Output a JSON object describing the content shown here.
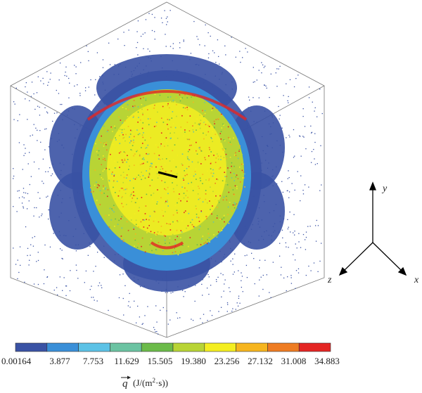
{
  "colorbar": {
    "colors": [
      "#3a52a4",
      "#3a8fd8",
      "#5cc2e6",
      "#6bc3a2",
      "#6cbb4a",
      "#b8d435",
      "#f4ee20",
      "#f6b51e",
      "#ee7c22",
      "#e42523"
    ],
    "tick_labels": [
      "0.00164",
      "3.877",
      "7.753",
      "11.629",
      "15.505",
      "19.380",
      "23.256",
      "27.132",
      "31.008",
      "34.883"
    ]
  },
  "axis_labels": {
    "y": "y",
    "z": "z",
    "x": "x"
  },
  "quantity": {
    "symbol": "q",
    "unit_start": "(J/(m",
    "unit_exponent": "2",
    "unit_end": "·s))"
  }
}
